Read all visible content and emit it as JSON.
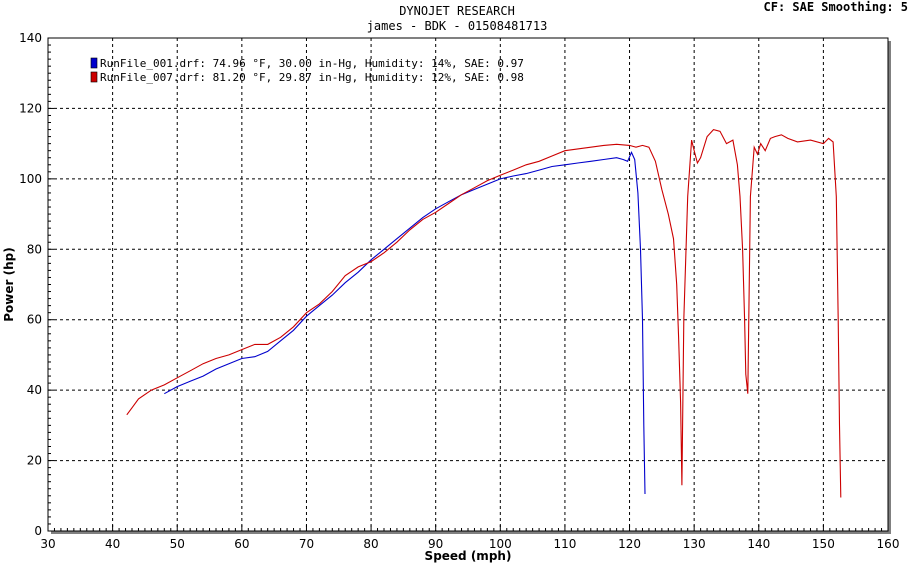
{
  "header": {
    "title": "DYNOJET RESEARCH",
    "subtitle": "james - BDK - 01508481713",
    "settings": "CF: SAE  Smoothing: 5"
  },
  "chart_data": {
    "type": "line",
    "xlabel": "Speed (mph)",
    "ylabel": "Power (hp)",
    "xlim": [
      30,
      160
    ],
    "ylim": [
      0,
      140
    ],
    "xticks": [
      30,
      40,
      50,
      60,
      70,
      80,
      90,
      100,
      110,
      120,
      130,
      140,
      150,
      160
    ],
    "yticks": [
      0,
      20,
      40,
      60,
      80,
      100,
      120,
      140
    ],
    "grid": true,
    "legend_position": "top-left",
    "series": [
      {
        "name": "RunFile_001.drf: 74.96 °F, 30.00 in-Hg, Humidity: 14%, SAE: 0.97",
        "color": "#0000cc",
        "x": [
          48.0,
          50,
          52,
          54,
          56,
          58,
          60,
          62,
          64,
          66,
          68,
          70,
          72,
          74,
          76,
          78,
          80,
          82,
          84,
          86,
          88,
          90,
          92,
          94,
          96,
          98,
          100,
          102,
          104,
          106,
          108,
          110,
          112,
          114,
          116,
          118,
          119,
          119.7,
          120.3,
          120.8,
          121.3,
          121.7,
          122.0,
          122.2,
          122.4
        ],
        "y": [
          39,
          41,
          42.5,
          44,
          46,
          47.5,
          49,
          49.5,
          51,
          54,
          57,
          61,
          64,
          67,
          70.5,
          73.5,
          77,
          80,
          83,
          86,
          89,
          91.5,
          93.5,
          95.5,
          97,
          98.5,
          100,
          100.8,
          101.5,
          102.5,
          103.5,
          104,
          104.5,
          105,
          105.5,
          106,
          105.5,
          105,
          107.5,
          105.5,
          96,
          80,
          60,
          30,
          10.5
        ]
      },
      {
        "name": "RunFile_007.drf: 81.20 °F, 29.87 in-Hg, Humidity: 12%, SAE: 0.98",
        "color": "#cc0000",
        "x": [
          42.2,
          43,
          44,
          46,
          48,
          50,
          52,
          54,
          56,
          58,
          60,
          62,
          64,
          66,
          68,
          70,
          72,
          74,
          76,
          78,
          80,
          82,
          84,
          86,
          88,
          90,
          92,
          94,
          96,
          98,
          100,
          102,
          104,
          106,
          108,
          110,
          112,
          114,
          116,
          118,
          120,
          121,
          122,
          123,
          124,
          125,
          126,
          126.8,
          127.3,
          127.6,
          127.9,
          128.1,
          128.4,
          129,
          129.6,
          130,
          130.5,
          131,
          132,
          133,
          134,
          135,
          136,
          136.7,
          137.1,
          137.5,
          137.8,
          138.0,
          138.3,
          138.7,
          139.3,
          139.8,
          140.3,
          141,
          141.8,
          142.5,
          143.5,
          144.5,
          146,
          148,
          150,
          150.8,
          151.5,
          152.0,
          152.3,
          152.5,
          152.7
        ],
        "y": [
          33,
          35,
          37.5,
          40,
          41.5,
          43.5,
          45.5,
          47.5,
          49,
          50,
          51.5,
          53,
          53,
          55,
          58,
          62,
          64.5,
          68,
          72.5,
          75,
          76.5,
          79,
          82,
          85.5,
          88.5,
          90.5,
          93,
          95.5,
          97.5,
          99.5,
          101,
          102.5,
          104,
          105,
          106.5,
          108,
          108.5,
          109,
          109.5,
          109.8,
          109.5,
          109,
          109.5,
          109,
          105,
          97,
          90,
          83,
          70,
          55,
          36.5,
          13,
          60,
          95,
          111,
          108,
          104.5,
          106,
          112,
          114,
          113.5,
          110,
          111,
          104,
          95,
          80,
          60,
          44.5,
          39,
          95,
          109,
          107,
          110,
          108,
          111.5,
          112,
          112.5,
          111.5,
          110.5,
          111,
          110,
          111.5,
          110.5,
          95,
          60,
          30,
          9.5
        ]
      }
    ]
  }
}
